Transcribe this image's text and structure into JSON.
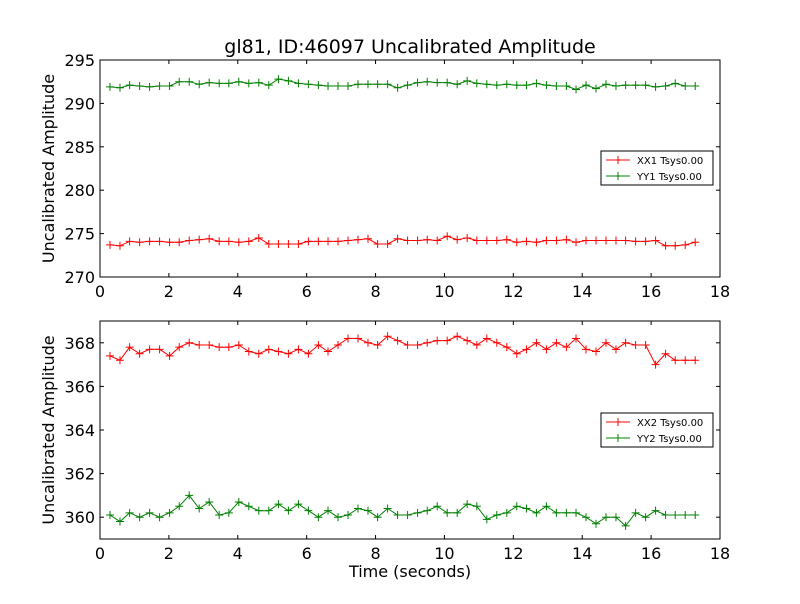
{
  "title": "gl81, ID:46097 Uncalibrated Amplitude",
  "chart_data": [
    {
      "type": "line",
      "title": "gl81, ID:46097 Uncalibrated Amplitude",
      "xlabel": "",
      "ylabel": "Uncalibrated Amplitude",
      "xlim": [
        0,
        18
      ],
      "ylim": [
        270,
        295
      ],
      "xticks": [
        "0",
        "2",
        "4",
        "6",
        "8",
        "10",
        "12",
        "14",
        "16",
        "18"
      ],
      "yticks": [
        "270",
        "275",
        "280",
        "285",
        "290",
        "295"
      ],
      "legend_position": "right",
      "x": [
        0.29,
        0.58,
        0.86,
        1.15,
        1.44,
        1.73,
        2.02,
        2.3,
        2.59,
        2.88,
        3.17,
        3.46,
        3.74,
        4.03,
        4.32,
        4.61,
        4.9,
        5.18,
        5.47,
        5.76,
        6.05,
        6.34,
        6.62,
        6.91,
        7.2,
        7.49,
        7.78,
        8.06,
        8.35,
        8.64,
        8.93,
        9.22,
        9.5,
        9.79,
        10.08,
        10.37,
        10.66,
        10.94,
        11.23,
        11.52,
        11.81,
        12.1,
        12.38,
        12.67,
        12.96,
        13.25,
        13.54,
        13.82,
        14.11,
        14.4,
        14.69,
        14.98,
        15.26,
        15.55,
        15.84,
        16.13,
        16.42,
        16.7,
        16.99,
        17.28
      ],
      "series": [
        {
          "name": "XX1 Tsys0.00",
          "color": "#ff0000",
          "values": [
            273.7,
            273.6,
            274.1,
            274.0,
            274.1,
            274.1,
            274.0,
            274.0,
            274.2,
            274.3,
            274.4,
            274.1,
            274.1,
            274.0,
            274.1,
            274.5,
            273.8,
            273.8,
            273.8,
            273.8,
            274.1,
            274.1,
            274.1,
            274.1,
            274.2,
            274.3,
            274.4,
            273.8,
            273.8,
            274.4,
            274.2,
            274.2,
            274.3,
            274.2,
            274.7,
            274.3,
            274.5,
            274.2,
            274.2,
            274.2,
            274.3,
            274.0,
            274.1,
            274.0,
            274.2,
            274.2,
            274.3,
            274.0,
            274.2,
            274.2,
            274.2,
            274.2,
            274.2,
            274.1,
            274.1,
            274.2,
            273.6,
            273.6,
            273.7,
            274.0
          ]
        },
        {
          "name": "YY1 Tsys0.00",
          "color": "#008000",
          "values": [
            291.9,
            291.8,
            292.1,
            292.0,
            291.9,
            292.0,
            292.0,
            292.5,
            292.5,
            292.2,
            292.4,
            292.3,
            292.3,
            292.5,
            292.3,
            292.4,
            292.1,
            292.8,
            292.6,
            292.3,
            292.2,
            292.1,
            292.0,
            292.0,
            292.0,
            292.2,
            292.2,
            292.2,
            292.2,
            291.8,
            292.1,
            292.4,
            292.5,
            292.4,
            292.4,
            292.2,
            292.6,
            292.3,
            292.2,
            292.1,
            292.2,
            292.1,
            292.1,
            292.3,
            292.1,
            292.0,
            292.0,
            291.6,
            292.1,
            291.7,
            292.2,
            292.0,
            292.1,
            292.1,
            292.1,
            291.9,
            292.0,
            292.3,
            292.0,
            292.0
          ]
        }
      ]
    },
    {
      "type": "line",
      "title": "",
      "xlabel": "Time (seconds)",
      "ylabel": "Uncalibrated Amplitude",
      "xlim": [
        0,
        18
      ],
      "ylim": [
        359,
        369
      ],
      "xticks": [
        "0",
        "2",
        "4",
        "6",
        "8",
        "10",
        "12",
        "14",
        "16",
        "18"
      ],
      "yticks": [
        "360",
        "362",
        "364",
        "366",
        "368"
      ],
      "legend_position": "right",
      "x": [
        0.29,
        0.58,
        0.86,
        1.15,
        1.44,
        1.73,
        2.02,
        2.3,
        2.59,
        2.88,
        3.17,
        3.46,
        3.74,
        4.03,
        4.32,
        4.61,
        4.9,
        5.18,
        5.47,
        5.76,
        6.05,
        6.34,
        6.62,
        6.91,
        7.2,
        7.49,
        7.78,
        8.06,
        8.35,
        8.64,
        8.93,
        9.22,
        9.5,
        9.79,
        10.08,
        10.37,
        10.66,
        10.94,
        11.23,
        11.52,
        11.81,
        12.1,
        12.38,
        12.67,
        12.96,
        13.25,
        13.54,
        13.82,
        14.11,
        14.4,
        14.69,
        14.98,
        15.26,
        15.55,
        15.84,
        16.13,
        16.42,
        16.7,
        16.99,
        17.28
      ],
      "series": [
        {
          "name": "XX2 Tsys0.00",
          "color": "#ff0000",
          "values": [
            367.4,
            367.2,
            367.8,
            367.5,
            367.7,
            367.7,
            367.4,
            367.8,
            368.0,
            367.9,
            367.9,
            367.8,
            367.8,
            367.9,
            367.6,
            367.5,
            367.7,
            367.6,
            367.5,
            367.7,
            367.5,
            367.9,
            367.6,
            367.9,
            368.2,
            368.2,
            368.0,
            367.9,
            368.3,
            368.1,
            367.9,
            367.9,
            368.0,
            368.1,
            368.1,
            368.3,
            368.1,
            367.9,
            368.2,
            368.0,
            367.8,
            367.5,
            367.7,
            368.0,
            367.7,
            368.0,
            367.8,
            368.2,
            367.7,
            367.6,
            368.0,
            367.7,
            368.0,
            367.9,
            367.9,
            367.0,
            367.5,
            367.2,
            367.2,
            367.2
          ]
        },
        {
          "name": "YY2 Tsys0.00",
          "color": "#008000",
          "values": [
            360.1,
            359.8,
            360.2,
            360.0,
            360.2,
            360.0,
            360.2,
            360.5,
            361.0,
            360.4,
            360.7,
            360.1,
            360.2,
            360.7,
            360.5,
            360.3,
            360.3,
            360.6,
            360.3,
            360.6,
            360.3,
            360.0,
            360.3,
            360.0,
            360.1,
            360.4,
            360.3,
            360.0,
            360.4,
            360.1,
            360.1,
            360.2,
            360.3,
            360.5,
            360.2,
            360.2,
            360.6,
            360.5,
            359.9,
            360.1,
            360.2,
            360.5,
            360.4,
            360.2,
            360.5,
            360.2,
            360.2,
            360.2,
            360.0,
            359.7,
            360.0,
            360.0,
            359.6,
            360.2,
            360.0,
            360.3,
            360.1,
            360.1,
            360.1,
            360.1
          ]
        }
      ]
    }
  ]
}
